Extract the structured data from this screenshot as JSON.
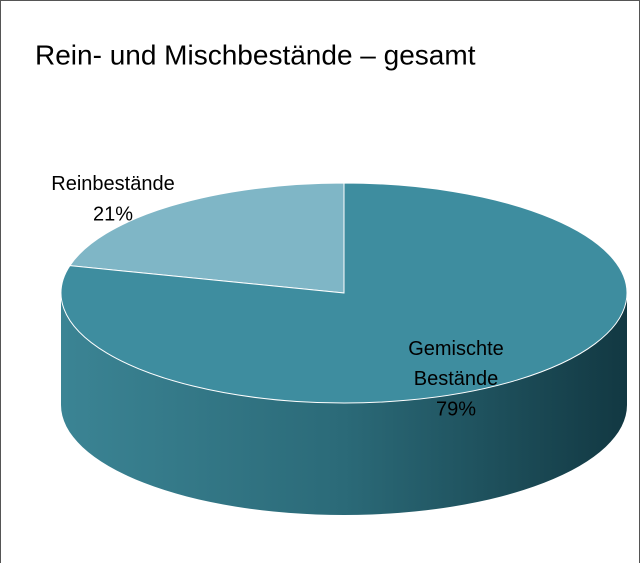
{
  "chart_data": {
    "type": "pie",
    "title": "Rein- und Mischbestände – gesamt",
    "categories": [
      "Reinbestände",
      "Gemischte Bestände"
    ],
    "values": [
      21,
      79
    ],
    "value_labels": [
      "21%",
      "79%"
    ],
    "colors": [
      "#7fb6c6",
      "#3e8d9f"
    ]
  }
}
